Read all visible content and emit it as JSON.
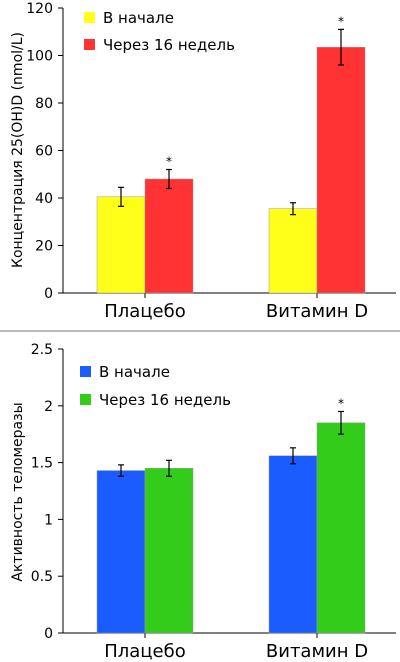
{
  "chart_data": [
    {
      "type": "bar",
      "ylabel": "Концентрация 25(OH)D (nmol/L)",
      "categories": [
        "Плацебо",
        "Витамин D"
      ],
      "ylim": [
        0,
        120
      ],
      "yticks": [
        0,
        20,
        40,
        60,
        80,
        100,
        120
      ],
      "ytick_labels": [
        "0",
        "20",
        "40",
        "60",
        "80",
        "100",
        "120"
      ],
      "legend_position": "top-left",
      "grid": false,
      "series": [
        {
          "name": "В начале",
          "color": "#ffff1a",
          "values": [
            40.5,
            35.5
          ],
          "errors": [
            4,
            2.5
          ],
          "significance": [
            "",
            ""
          ]
        },
        {
          "name": "Через 16 недель",
          "color": "#ff3333",
          "values": [
            48,
            103.5
          ],
          "errors": [
            4,
            7.5
          ],
          "significance": [
            "*",
            "*"
          ]
        }
      ]
    },
    {
      "type": "bar",
      "ylabel": "Активность теломеразы",
      "categories": [
        "Плацебо",
        "Витамин D"
      ],
      "ylim": [
        0,
        2.5
      ],
      "yticks": [
        0,
        0.5,
        1,
        1.5,
        2,
        2.5
      ],
      "ytick_labels": [
        "0",
        "0.5",
        "1",
        "1.5",
        "2",
        "2.5"
      ],
      "legend_position": "top-left",
      "grid": false,
      "series": [
        {
          "name": "В начале",
          "color": "#1a5cff",
          "values": [
            1.43,
            1.56
          ],
          "errors": [
            0.05,
            0.07
          ],
          "significance": [
            "",
            ""
          ]
        },
        {
          "name": "Через 16 недель",
          "color": "#33cc1a",
          "values": [
            1.45,
            1.85
          ],
          "errors": [
            0.07,
            0.1
          ],
          "significance": [
            "",
            "*"
          ]
        }
      ]
    }
  ]
}
